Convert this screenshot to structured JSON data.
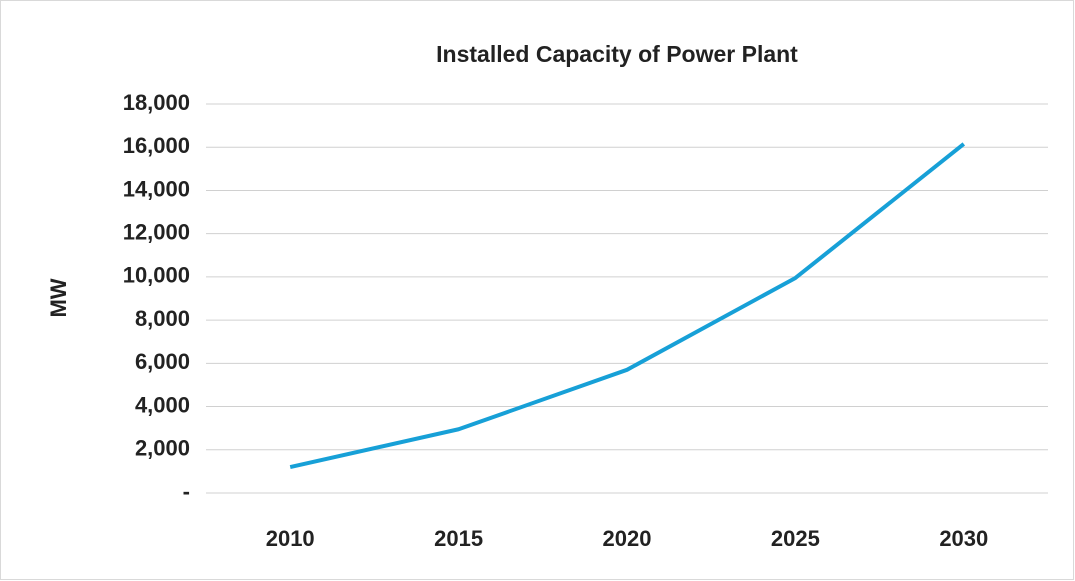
{
  "chart_data": {
    "type": "line",
    "title": "Installed Capacity of Power Plant",
    "y_label": "MW",
    "categories": [
      "2010",
      "2015",
      "2020",
      "2025",
      "2030"
    ],
    "values": [
      1200,
      2950,
      5700,
      9950,
      16150
    ],
    "color": "#17a0d7",
    "ylim": [
      0,
      18000
    ],
    "yticks": [
      {
        "value": 0,
        "label": "-"
      },
      {
        "value": 2000,
        "label": "2,000"
      },
      {
        "value": 4000,
        "label": "4,000"
      },
      {
        "value": 6000,
        "label": "6,000"
      },
      {
        "value": 8000,
        "label": "8,000"
      },
      {
        "value": 10000,
        "label": "10,000"
      },
      {
        "value": 12000,
        "label": "12,000"
      },
      {
        "value": 14000,
        "label": "14,000"
      },
      {
        "value": 16000,
        "label": "16,000"
      },
      {
        "value": 18000,
        "label": "18,000"
      }
    ],
    "grid": true
  }
}
